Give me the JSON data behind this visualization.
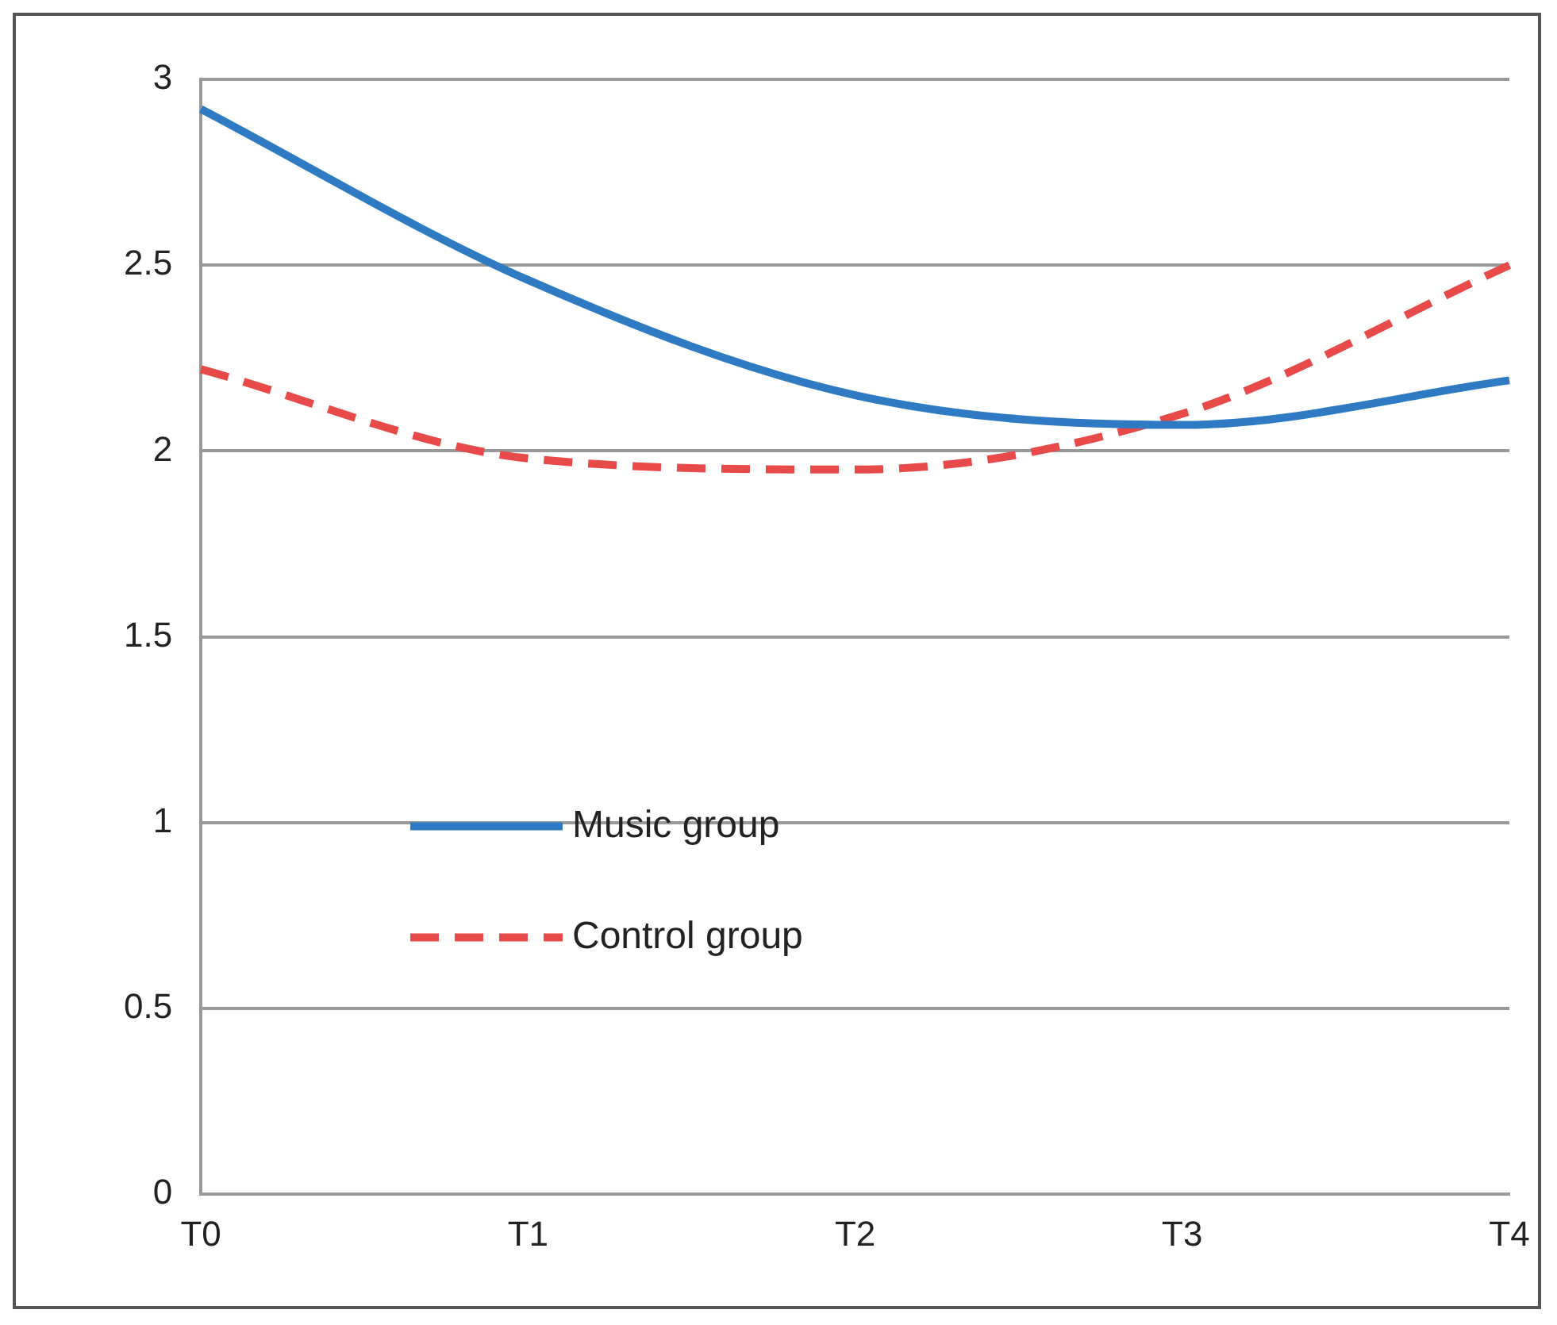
{
  "chart_data": {
    "type": "line",
    "categories": [
      "T0",
      "T1",
      "T2",
      "T3",
      "T4"
    ],
    "series": [
      {
        "name": "Music group",
        "color": "#2e7bc4",
        "values": [
          2.92,
          2.46,
          2.15,
          2.07,
          2.19
        ],
        "line_style": "solid"
      },
      {
        "name": "Control group",
        "color": "#e84a4a",
        "values": [
          2.22,
          1.98,
          1.95,
          2.1,
          2.5
        ],
        "line_style": "dashed"
      }
    ],
    "ylim": [
      0,
      3
    ],
    "yticks": [
      0,
      0.5,
      1,
      1.5,
      2,
      2.5,
      3
    ],
    "grid": "y",
    "legend": "bottom",
    "marker": "none"
  }
}
